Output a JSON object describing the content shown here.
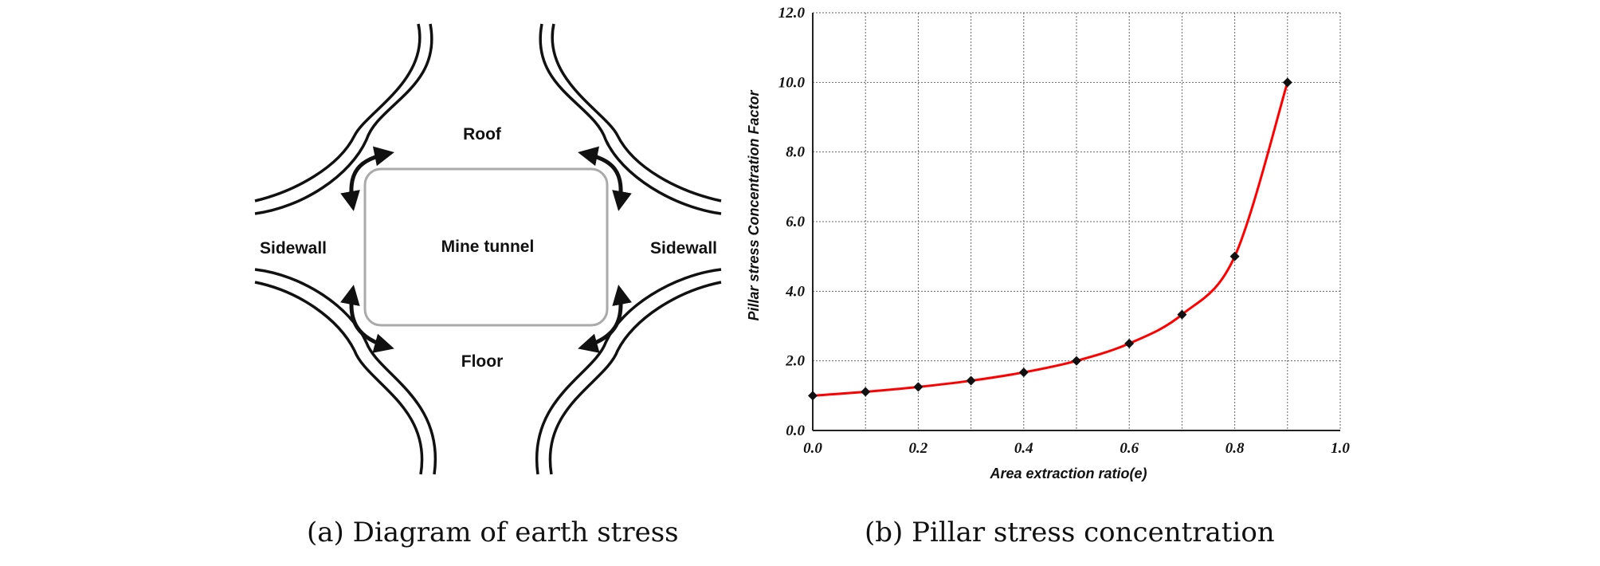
{
  "diagram": {
    "roof_label": "Roof",
    "tunnel_label": "Mine tunnel",
    "sidewall_left_label": "Sidewall",
    "sidewall_right_label": "Sidewall",
    "floor_label": "Floor"
  },
  "captions": {
    "a": "(a) Diagram of earth stress",
    "b": "(b) Pillar stress concentration"
  },
  "chart_data": {
    "type": "line",
    "title": "",
    "xlabel": "Area extraction ratio(e)",
    "ylabel": "Pillar stress Concentration Factor",
    "xlim": [
      0.0,
      1.0
    ],
    "ylim": [
      0.0,
      12.0
    ],
    "xticks": [
      "0.0",
      "0.2",
      "0.4",
      "0.6",
      "0.8",
      "1.0"
    ],
    "yticks": [
      "0.0",
      "2.0",
      "4.0",
      "6.0",
      "8.0",
      "10.0",
      "12.0"
    ],
    "grid": true,
    "line_color": "#ff0000",
    "marker_color": "#111111",
    "series": [
      {
        "x": [
          0.0,
          0.1,
          0.2,
          0.3,
          0.4,
          0.5,
          0.6,
          0.7,
          0.8,
          0.9
        ],
        "y": [
          1.0,
          1.11,
          1.25,
          1.43,
          1.67,
          2.0,
          2.5,
          3.33,
          5.0,
          10.0
        ]
      }
    ]
  }
}
